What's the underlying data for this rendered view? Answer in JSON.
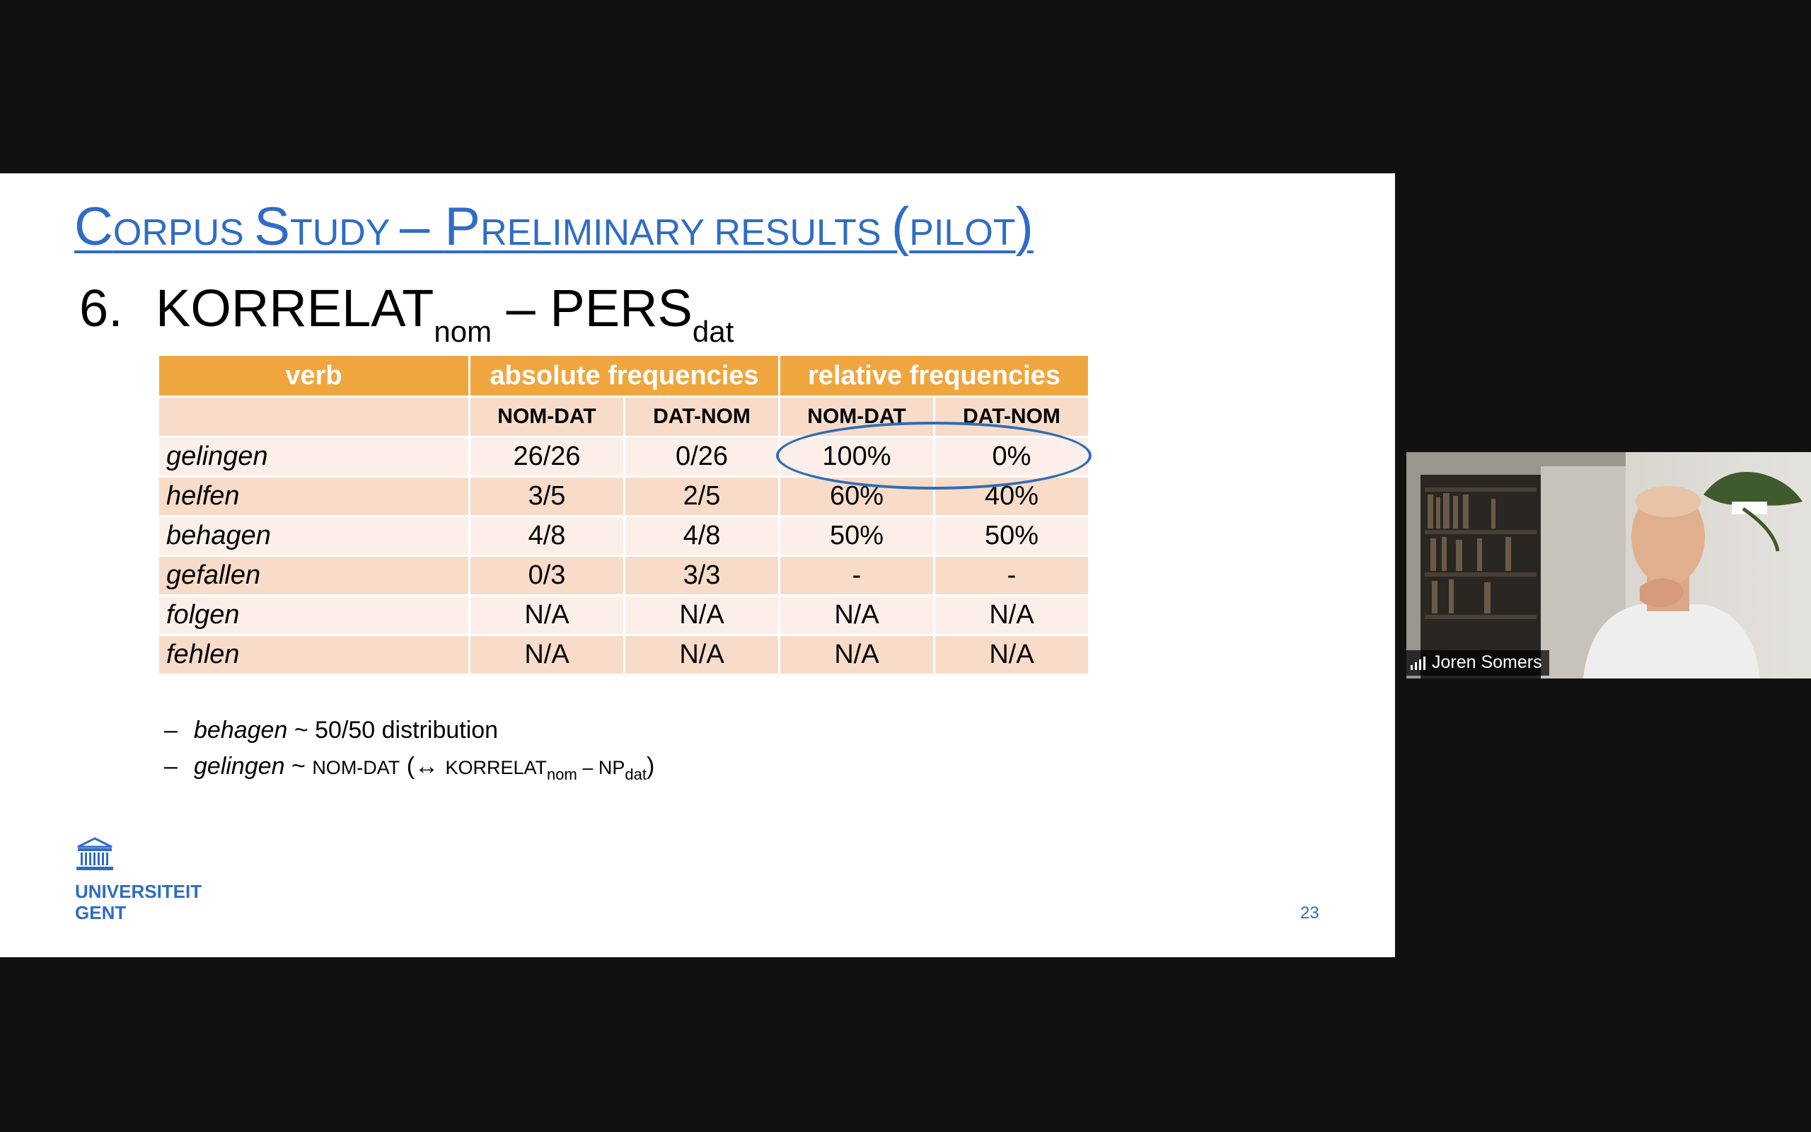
{
  "slide": {
    "title": {
      "parts": [
        {
          "text": "C",
          "cap": true
        },
        {
          "text": "ORPUS ",
          "cap": false
        },
        {
          "text": "S",
          "cap": true
        },
        {
          "text": "TUDY ",
          "cap": false
        },
        {
          "text": "– ",
          "cap": true
        },
        {
          "text": "P",
          "cap": true
        },
        {
          "text": "RELIMINARY RESULTS ",
          "cap": false
        },
        {
          "text": "(",
          "cap": true
        },
        {
          "text": "PILOT",
          "cap": false
        },
        {
          "text": ")",
          "cap": true
        }
      ]
    },
    "subtitle": {
      "number": "6.",
      "part1": "KORRELAT",
      "sub1": "nom",
      "dash": " – ",
      "part2": "PERS",
      "sub2": "dat"
    },
    "table": {
      "header1": [
        "verb",
        "absolute frequencies",
        "relative frequencies"
      ],
      "header2": [
        "",
        "NOM-DAT",
        "DAT-NOM",
        "NOM-DAT",
        "DAT-NOM"
      ],
      "rows": [
        [
          "gelingen",
          "26/26",
          "0/26",
          "100%",
          "0%"
        ],
        [
          "helfen",
          "3/5",
          "2/5",
          "60%",
          "40%"
        ],
        [
          "behagen",
          "4/8",
          "4/8",
          "50%",
          "50%"
        ],
        [
          "gefallen",
          "0/3",
          "3/3",
          "-",
          "-"
        ],
        [
          "folgen",
          "N/A",
          "N/A",
          "N/A",
          "N/A"
        ],
        [
          "fehlen",
          "N/A",
          "N/A",
          "N/A",
          "N/A"
        ]
      ]
    },
    "notes": {
      "dash": "–",
      "note1": {
        "verb": "behagen",
        "text": " ~ 50/50 distribution"
      },
      "note2": {
        "verb": "gelingen",
        "tilde": " ~ ",
        "order": "NOM-DAT",
        "paren_open": " (↔ ",
        "korrelat": "KORRELAT",
        "sub1": "nom",
        "dash": " – NP",
        "sub2": "dat",
        "paren_close": ")"
      }
    },
    "logo": {
      "line1": "UNIVERSITEIT",
      "line2": "GENT",
      "icon": "university-building-icon"
    },
    "page_number": "23"
  },
  "video": {
    "participant_name": "Joren Somers",
    "signal_icon": "signal-bars-icon"
  },
  "colors": {
    "title_blue": "#2f6cc5",
    "table_header_orange": "#f0a63f",
    "row_dark": "#f8dcc9",
    "row_light": "#fcefe9",
    "ellipse_blue": "#2e6db4"
  }
}
